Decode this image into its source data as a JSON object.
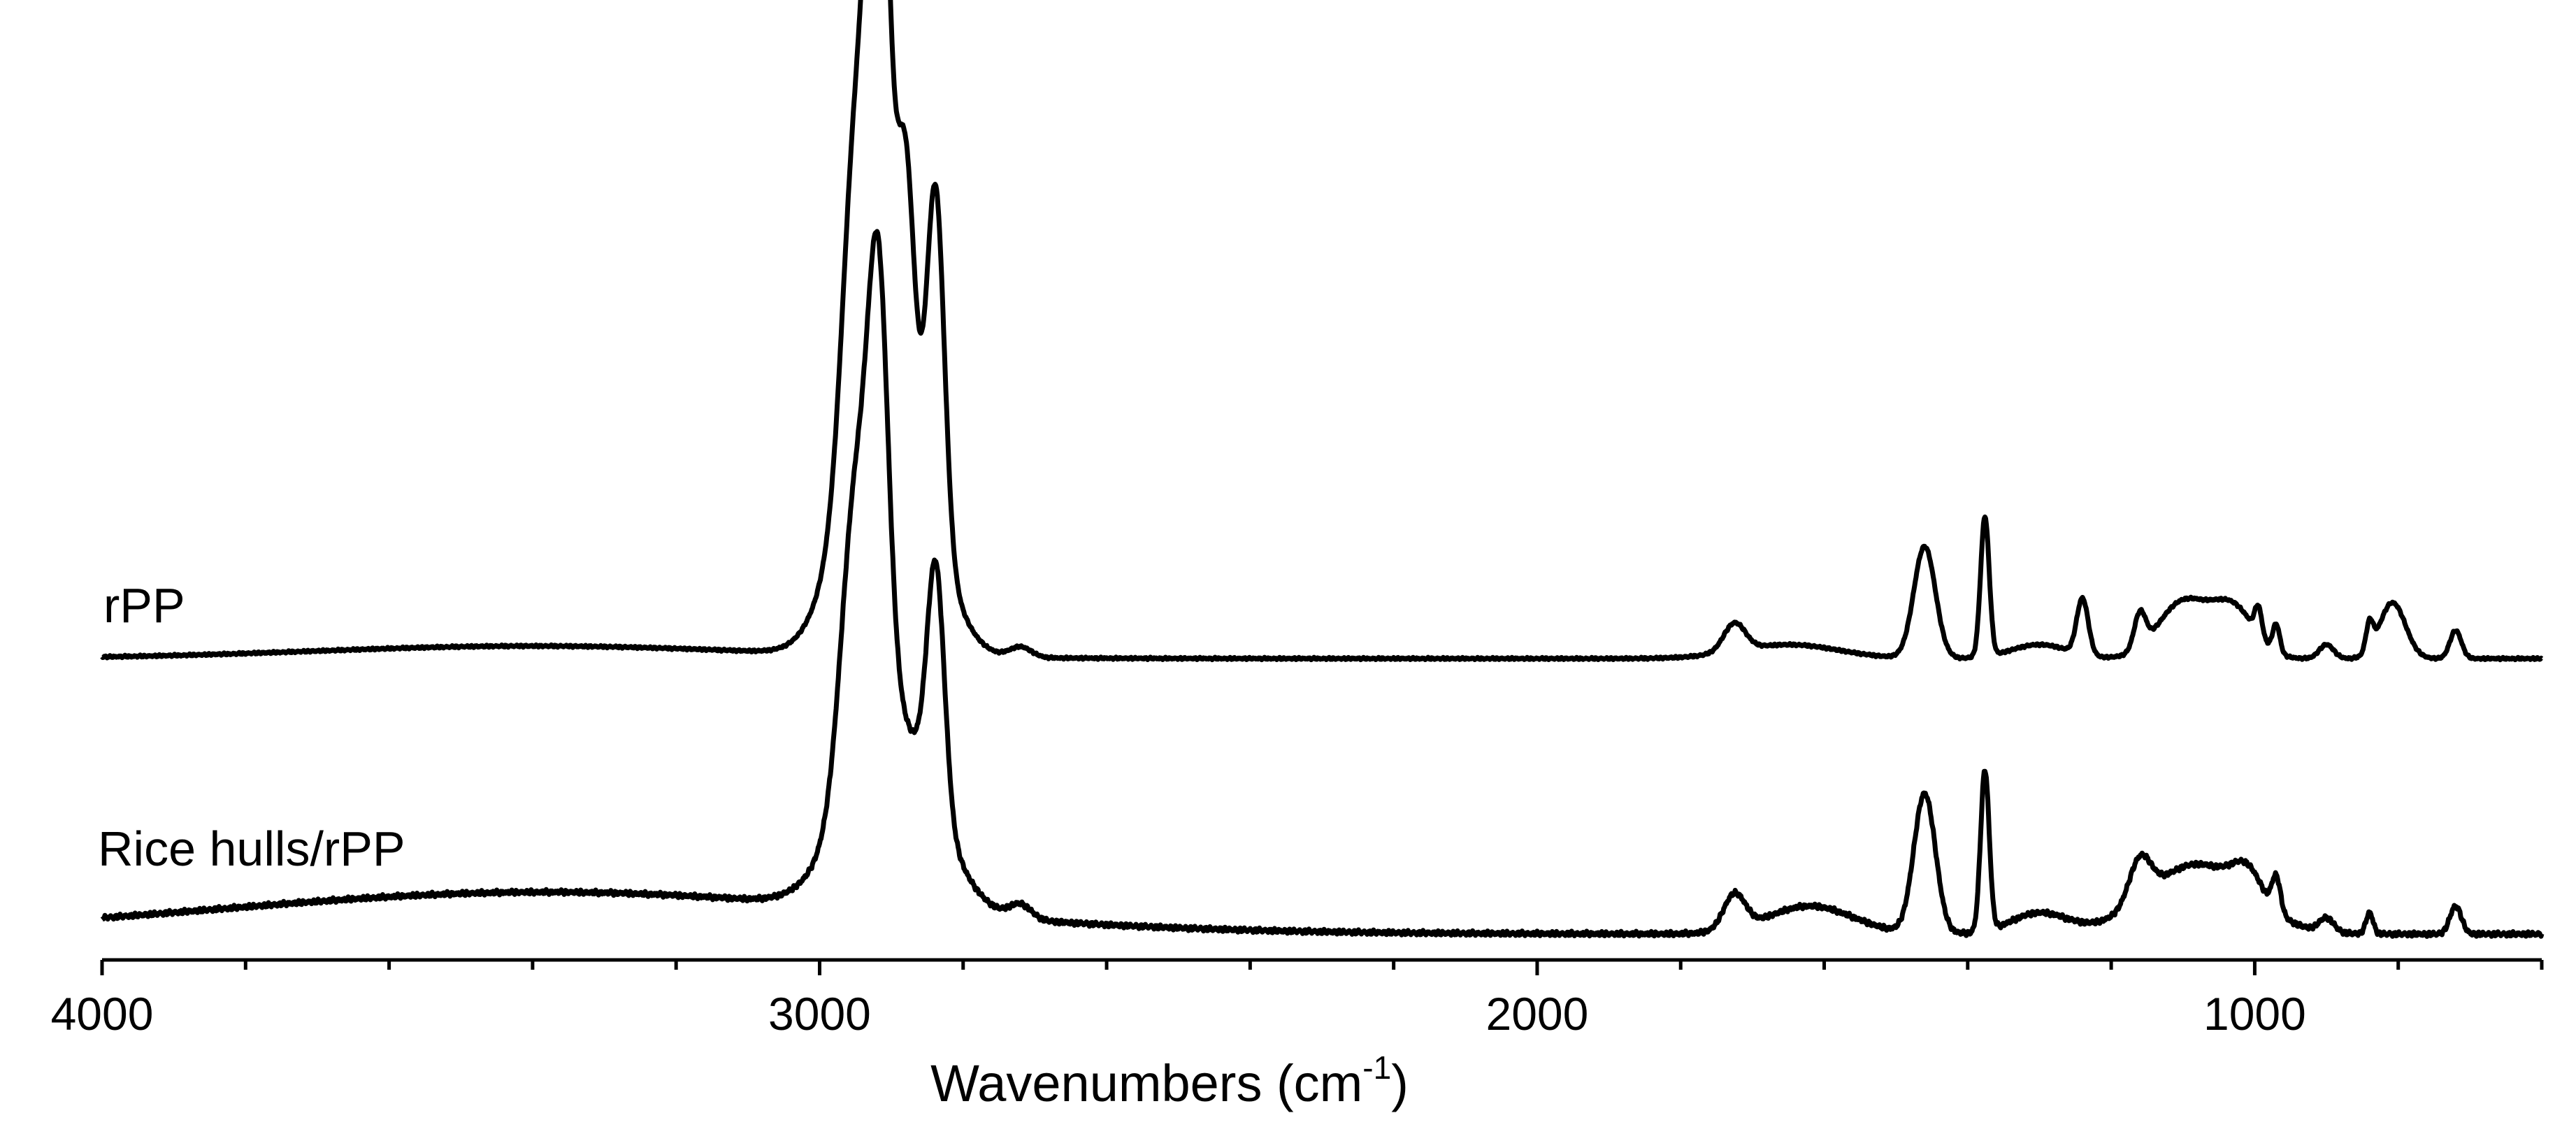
{
  "chart_data": {
    "type": "line",
    "title": "",
    "xlabel": "Wavenumbers (cm",
    "xlabel_sup": "-1",
    "xlabel_close": ")",
    "ylabel": "",
    "xlim": [
      4000,
      600
    ],
    "x_reversed": true,
    "y_axis_shown": false,
    "grid": false,
    "legend": "none",
    "line_color": "#000000",
    "x_ticks": [
      {
        "value": 4000,
        "label": "4000"
      },
      {
        "value": 3000,
        "label": "3000"
      },
      {
        "value": 2000,
        "label": "2000"
      },
      {
        "value": 1000,
        "label": "1000"
      }
    ],
    "x_minor_step": 200,
    "series": [
      {
        "name": "rPP",
        "peaks": [
          [
            3400,
            0.018,
            300
          ],
          [
            2950,
            0.44,
            18
          ],
          [
            2918,
            0.92,
            14
          ],
          [
            2880,
            0.36,
            12
          ],
          [
            2838,
            0.48,
            12
          ],
          [
            2930,
            0.3,
            45
          ],
          [
            2870,
            0.2,
            45
          ],
          [
            2720,
            0.015,
            15
          ],
          [
            1725,
            0.04,
            15
          ],
          [
            1650,
            0.02,
            70
          ],
          [
            1460,
            0.16,
            15
          ],
          [
            1376,
            0.2,
            6
          ],
          [
            1300,
            0.02,
            40
          ],
          [
            1240,
            0.08,
            8
          ],
          [
            1160,
            0.05,
            8
          ],
          [
            1100,
            0.08,
            35
          ],
          [
            1030,
            0.07,
            30
          ],
          [
            995,
            0.04,
            5
          ],
          [
            970,
            0.04,
            5
          ],
          [
            900,
            0.02,
            10
          ],
          [
            840,
            0.04,
            5
          ],
          [
            808,
            0.08,
            18
          ],
          [
            720,
            0.04,
            8
          ]
        ]
      },
      {
        "name": "Rice hulls/rPP",
        "peaks": [
          [
            3380,
            0.06,
            450
          ],
          [
            2950,
            0.4,
            20
          ],
          [
            2918,
            0.58,
            14
          ],
          [
            2838,
            0.34,
            12
          ],
          [
            2900,
            0.28,
            60
          ],
          [
            2720,
            0.02,
            15
          ],
          [
            1725,
            0.05,
            15
          ],
          [
            1620,
            0.04,
            60
          ],
          [
            1460,
            0.2,
            15
          ],
          [
            1376,
            0.23,
            6
          ],
          [
            1300,
            0.03,
            40
          ],
          [
            1160,
            0.06,
            15
          ],
          [
            1080,
            0.1,
            70
          ],
          [
            1010,
            0.04,
            20
          ],
          [
            970,
            0.05,
            6
          ],
          [
            900,
            0.02,
            10
          ],
          [
            840,
            0.03,
            5
          ],
          [
            720,
            0.04,
            8
          ]
        ]
      }
    ]
  }
}
